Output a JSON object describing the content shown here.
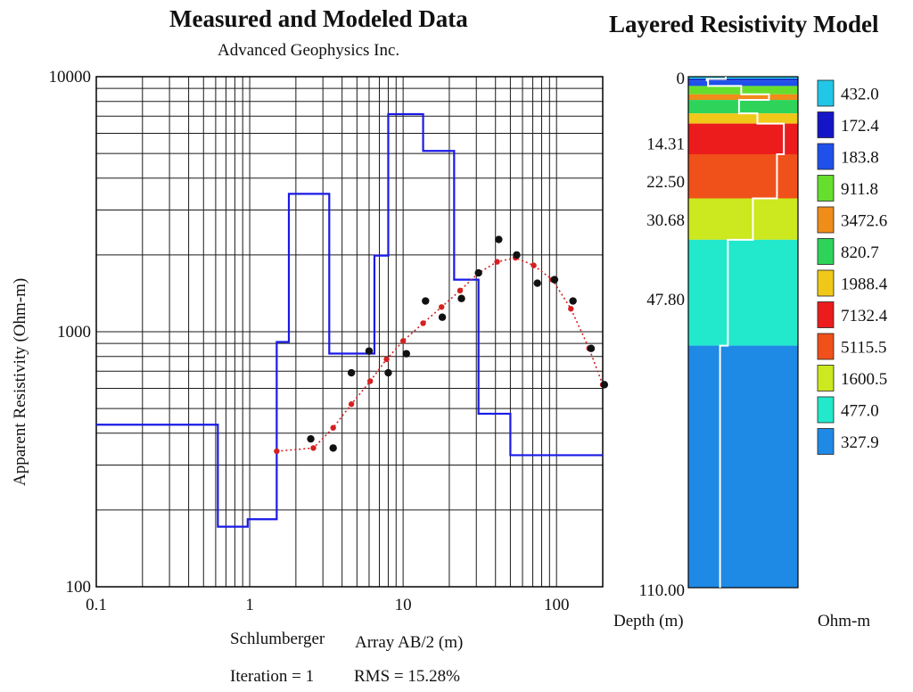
{
  "chart_data": [
    {
      "type": "line",
      "title": "Measured and Modeled Data",
      "subtitle": "Advanced Geophysics Inc.",
      "xlabel": "Array AB/2 (m)",
      "ylabel": "Apparent Resistivity (Ohm-m)",
      "x_scale": "log",
      "y_scale": "log",
      "xlim": [
        0.1,
        200
      ],
      "ylim": [
        100,
        10000
      ],
      "grid": true,
      "x_ticks": [
        "0.1",
        "1",
        "10",
        "100"
      ],
      "y_ticks": [
        "10000",
        "1000",
        "100"
      ],
      "series": [
        {
          "style": "step",
          "color": "#1a1ae6",
          "x": [
            0.1,
            0.62,
            0.62,
            0.97,
            0.97,
            1.5,
            1.5,
            1.8,
            1.8,
            3.3,
            3.3,
            6.5,
            6.5,
            8.0,
            8.0,
            13.5,
            13.5,
            21.5,
            21.5,
            31.0,
            31.0,
            50.0,
            50.0,
            200
          ],
          "y": [
            432,
            432,
            172,
            172,
            184,
            184,
            912,
            912,
            3473,
            3473,
            821,
            821,
            1988,
            1988,
            7132,
            7132,
            5116,
            5116,
            1600,
            1600,
            477,
            477,
            328,
            328
          ]
        },
        {
          "style": "dotted-line-with-markers",
          "color": "#d42020",
          "x": [
            1.5,
            2.6,
            3.5,
            4.6,
            6.1,
            7.8,
            10.0,
            13.5,
            17.8,
            23.5,
            31.0,
            41.0,
            54.0,
            71.0,
            94.0,
            124.0,
            163.0,
            200.0
          ],
          "y": [
            340,
            350,
            420,
            520,
            640,
            780,
            920,
            1080,
            1250,
            1450,
            1700,
            1880,
            1950,
            1820,
            1600,
            1230,
            860,
            620
          ]
        },
        {
          "style": "points",
          "color": "#111111",
          "x": [
            2.5,
            3.5,
            4.6,
            6.0,
            8.0,
            10.5,
            14.0,
            18.0,
            24.0,
            31.0,
            42.0,
            55.0,
            75.0,
            97.0,
            128.0,
            168.0,
            205.0
          ],
          "y": [
            380,
            350,
            690,
            840,
            690,
            820,
            1320,
            1140,
            1350,
            1700,
            2300,
            2000,
            1550,
            1600,
            1320,
            860,
            620
          ]
        }
      ],
      "footer": {
        "array_type": "Schlumberger",
        "iteration": "Iteration = 1",
        "rms": "RMS = 15.28%"
      }
    },
    {
      "type": "table",
      "title": "Layered Resistivity Model",
      "depth_label": "Depth (m)",
      "unit_label": "Ohm-m",
      "depth_ticks": [
        "0",
        "14.31",
        "22.50",
        "30.68",
        "47.80",
        "110.00"
      ],
      "depth_max": 110,
      "layers": [
        {
          "top": 0.0,
          "bottom": 0.47,
          "resistivity": "432.0",
          "color": "#22c6e6"
        },
        {
          "top": 0.47,
          "bottom": 0.8,
          "resistivity": "172.4",
          "color": "#1515c8"
        },
        {
          "top": 0.8,
          "bottom": 2.0,
          "resistivity": "183.8",
          "color": "#1f50ea"
        },
        {
          "top": 2.0,
          "bottom": 3.8,
          "resistivity": "911.8",
          "color": "#66de2e"
        },
        {
          "top": 3.8,
          "bottom": 5.0,
          "resistivity": "3472.6",
          "color": "#f08c1a"
        },
        {
          "top": 5.0,
          "bottom": 7.9,
          "resistivity": "820.7",
          "color": "#2ed45a"
        },
        {
          "top": 7.9,
          "bottom": 10.1,
          "resistivity": "1988.4",
          "color": "#f0c81a"
        },
        {
          "top": 10.1,
          "bottom": 16.7,
          "resistivity": "7132.4",
          "color": "#ec1c1c"
        },
        {
          "top": 16.7,
          "bottom": 26.2,
          "resistivity": "5115.5",
          "color": "#f0501a"
        },
        {
          "top": 26.2,
          "bottom": 35.1,
          "resistivity": "1600.5",
          "color": "#cce81e"
        },
        {
          "top": 35.1,
          "bottom": 57.9,
          "resistivity": "477.0",
          "color": "#22e8cc"
        },
        {
          "top": 57.9,
          "bottom": 110.0,
          "resistivity": "327.9",
          "color": "#1f8ae6"
        }
      ]
    }
  ]
}
